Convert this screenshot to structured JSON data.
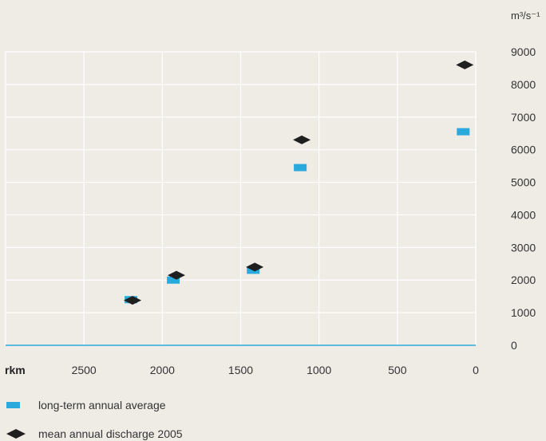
{
  "chart_data": {
    "type": "scatter",
    "x_axis": {
      "label": "rkm",
      "reversed": true,
      "range": [
        0,
        3000
      ],
      "ticks": [
        2500,
        2000,
        1500,
        1000,
        500,
        0
      ]
    },
    "y_axis": {
      "unit": "m³/s⁻¹",
      "range": [
        0,
        9000
      ],
      "ticks": [
        0,
        1000,
        2000,
        3000,
        4000,
        5000,
        6000,
        7000,
        8000,
        9000
      ]
    },
    "grid": true,
    "legend_position": "bottom-left",
    "series": [
      {
        "name": "long-term annual average",
        "marker": "rectangle",
        "color": "#2aa9dc",
        "points": [
          {
            "x": 2200,
            "y": 1400
          },
          {
            "x": 1930,
            "y": 2000
          },
          {
            "x": 1420,
            "y": 2300
          },
          {
            "x": 1120,
            "y": 5450
          },
          {
            "x": 80,
            "y": 6550
          }
        ]
      },
      {
        "name": "mean annual discharge 2005",
        "marker": "diamond",
        "color": "#1f1f1f",
        "points": [
          {
            "x": 2190,
            "y": 1380
          },
          {
            "x": 1910,
            "y": 2150
          },
          {
            "x": 1410,
            "y": 2400
          },
          {
            "x": 1110,
            "y": 6300
          },
          {
            "x": 70,
            "y": 8600
          }
        ]
      }
    ]
  }
}
